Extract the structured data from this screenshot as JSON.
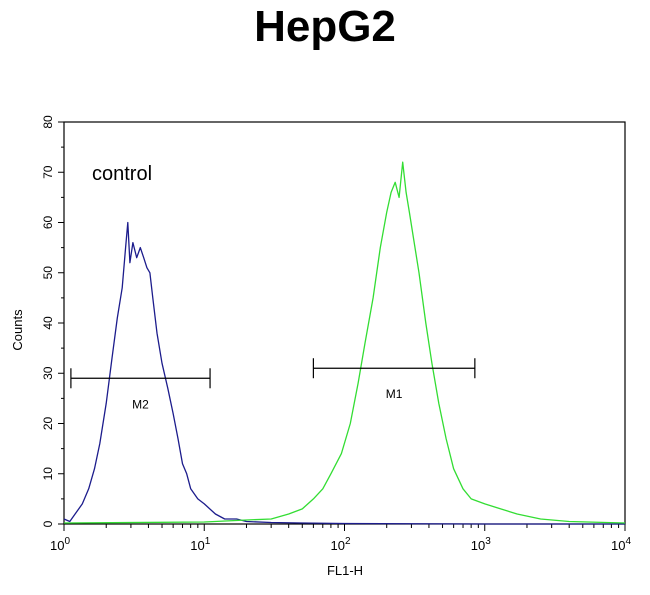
{
  "chart_data": {
    "type": "line",
    "title": "HepG2",
    "xlabel": "FL1-H",
    "ylabel": "Counts",
    "x_scale": "log",
    "xlim": [
      1,
      10000
    ],
    "ylim": [
      0,
      80
    ],
    "x_ticks": [
      {
        "base": "10",
        "exp": "0"
      },
      {
        "base": "10",
        "exp": "1"
      },
      {
        "base": "10",
        "exp": "2"
      },
      {
        "base": "10",
        "exp": "3"
      },
      {
        "base": "10",
        "exp": "4"
      }
    ],
    "y_ticks": [
      "0",
      "10",
      "20",
      "30",
      "40",
      "50",
      "60",
      "70",
      "80"
    ],
    "annotation": "control",
    "series": [
      {
        "color": "#1c1c8c",
        "points": [
          [
            1.0,
            1
          ],
          [
            1.1,
            0.5
          ],
          [
            1.2,
            2
          ],
          [
            1.35,
            4
          ],
          [
            1.5,
            7
          ],
          [
            1.65,
            11
          ],
          [
            1.8,
            16
          ],
          [
            2.0,
            24
          ],
          [
            2.2,
            33
          ],
          [
            2.4,
            41
          ],
          [
            2.6,
            47
          ],
          [
            2.75,
            55
          ],
          [
            2.85,
            60
          ],
          [
            2.95,
            52
          ],
          [
            3.1,
            56
          ],
          [
            3.3,
            53
          ],
          [
            3.5,
            55
          ],
          [
            3.7,
            53
          ],
          [
            3.9,
            51
          ],
          [
            4.1,
            50
          ],
          [
            4.3,
            45
          ],
          [
            4.6,
            38
          ],
          [
            5.0,
            32
          ],
          [
            5.5,
            27
          ],
          [
            6.0,
            22
          ],
          [
            6.5,
            17
          ],
          [
            7.0,
            12
          ],
          [
            7.5,
            10
          ],
          [
            8.0,
            7
          ],
          [
            9.0,
            5
          ],
          [
            10.0,
            4
          ],
          [
            12.0,
            2
          ],
          [
            14.0,
            1
          ],
          [
            17.0,
            1
          ],
          [
            20.0,
            0.5
          ],
          [
            30.0,
            0.3
          ],
          [
            50.0,
            0.2
          ],
          [
            100.0,
            0.1
          ],
          [
            1000.0,
            0
          ],
          [
            10000.0,
            0
          ]
        ]
      },
      {
        "color": "#33dd33",
        "points": [
          [
            1.0,
            0.2
          ],
          [
            10.0,
            0.4
          ],
          [
            20.0,
            0.8
          ],
          [
            30.0,
            1
          ],
          [
            40.0,
            2
          ],
          [
            50.0,
            3
          ],
          [
            60.0,
            5
          ],
          [
            70.0,
            7
          ],
          [
            80.0,
            10
          ],
          [
            95.0,
            14
          ],
          [
            110.0,
            20
          ],
          [
            125.0,
            28
          ],
          [
            140.0,
            36
          ],
          [
            160.0,
            45
          ],
          [
            180.0,
            55
          ],
          [
            200.0,
            62
          ],
          [
            215.0,
            66
          ],
          [
            230.0,
            68
          ],
          [
            245.0,
            65
          ],
          [
            260.0,
            72
          ],
          [
            275.0,
            66
          ],
          [
            290.0,
            62
          ],
          [
            310.0,
            57
          ],
          [
            340.0,
            50
          ],
          [
            380.0,
            40
          ],
          [
            420.0,
            32
          ],
          [
            470.0,
            24
          ],
          [
            530.0,
            17
          ],
          [
            600.0,
            11
          ],
          [
            700.0,
            7
          ],
          [
            800.0,
            5
          ],
          [
            1000.0,
            4
          ],
          [
            1300.0,
            3
          ],
          [
            1700.0,
            2
          ],
          [
            2500.0,
            1
          ],
          [
            4000.0,
            0.5
          ],
          [
            10000.0,
            0.2
          ]
        ]
      }
    ],
    "markers": [
      {
        "label": "M2",
        "x_start": 1.12,
        "x_end": 11.0,
        "y": 29
      },
      {
        "label": "M1",
        "x_start": 60.0,
        "x_end": 850.0,
        "y": 31
      }
    ]
  }
}
